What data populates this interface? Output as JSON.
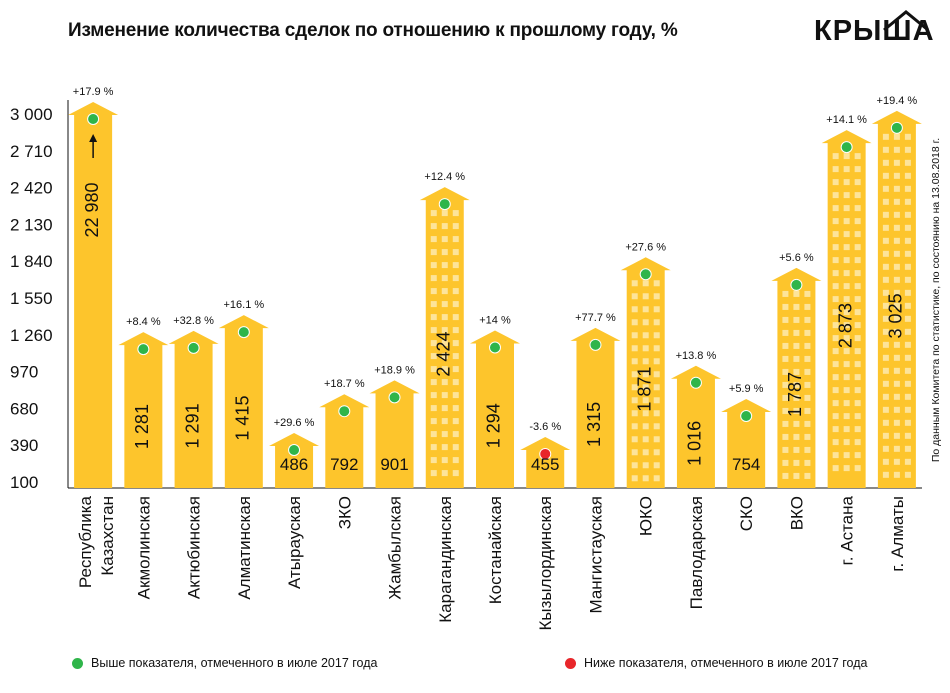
{
  "title": "Изменение количества сделок по отношению к прошлому году, %",
  "logo": "КРЫША",
  "note": "По данным Комитета по статистике, по состоянию на 13.08.2018 г.",
  "colors": {
    "bar": "#fdc52c",
    "above": "#2fb54a",
    "below": "#e8262a",
    "window": "#fde49a"
  },
  "legend": {
    "above": "Выше показателя, отмеченного в июле 2017 года",
    "below": "Ниже показателя, отмеченного в июле 2017 года"
  },
  "chart_data": {
    "type": "bar",
    "title": "Изменение количества сделок по отношению к прошлому году, %",
    "categories": [
      "Республика Казахстан",
      "Акмолинская",
      "Актюбинская",
      "Алматинская",
      "Атырауская",
      "ЗКО",
      "Жамбылская",
      "Карагандинская",
      "Костанайская",
      "Кызылординская",
      "Мангистауская",
      "ЮКО",
      "Павлодарская",
      "СКО",
      "ВКО",
      "г. Астана",
      "г. Алматы"
    ],
    "values": [
      22980,
      1281,
      1291,
      1415,
      486,
      792,
      901,
      2424,
      1294,
      455,
      1315,
      1871,
      1016,
      754,
      1787,
      2873,
      3025
    ],
    "value_labels": [
      "22 980",
      "1 281",
      "1 291",
      "1 415",
      "486",
      "792",
      "901",
      "2 424",
      "1 294",
      "455",
      "1 315",
      "1 871",
      "1 016",
      "754",
      "1 787",
      "2 873",
      "3 025"
    ],
    "changes": [
      "+17.9 %",
      "+8.4 %",
      "+32.8 %",
      "+16.1 %",
      "+29.6 %",
      "+18.7 %",
      "+18.9 %",
      "+12.4 %",
      "+14 %",
      "-3.6 %",
      "+77.7 %",
      "+27.6 %",
      "+13.8 %",
      "+5.9 %",
      "+5.6 %",
      "+14.1 %",
      "+19.4 %"
    ],
    "status": [
      "above",
      "above",
      "above",
      "above",
      "above",
      "above",
      "above",
      "above",
      "above",
      "below",
      "above",
      "above",
      "above",
      "above",
      "above",
      "above",
      "above"
    ],
    "yticks": [
      "3 000",
      "2 710",
      "2 420",
      "2 130",
      "1 840",
      "1 550",
      "1 260",
      "970",
      "680",
      "390",
      "100"
    ],
    "ylim": [
      100,
      3000
    ],
    "truncated_first_bar": true,
    "xlabel": "",
    "ylabel": ""
  }
}
